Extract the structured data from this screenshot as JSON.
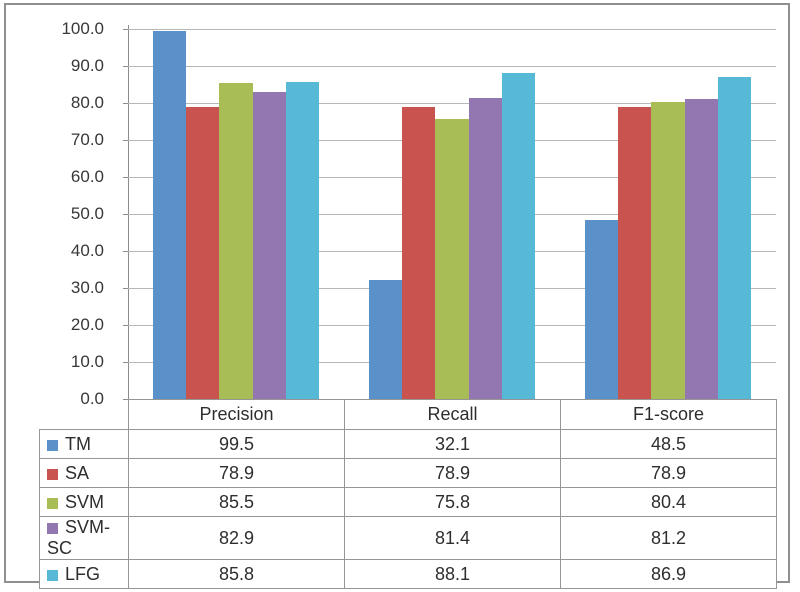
{
  "chart_data": {
    "type": "bar",
    "title": "",
    "categories": [
      "Precision",
      "Recall",
      "F1-score"
    ],
    "series": [
      {
        "name": "TM",
        "color": "#5b91c9",
        "values": [
          99.5,
          32.1,
          48.5
        ]
      },
      {
        "name": "SA",
        "color": "#c9534f",
        "values": [
          78.9,
          78.9,
          78.9
        ]
      },
      {
        "name": "SVM",
        "color": "#a9bd56",
        "values": [
          85.5,
          75.8,
          80.4
        ]
      },
      {
        "name": "SVM-SC",
        "color": "#9377b0",
        "values": [
          82.9,
          81.4,
          81.2
        ]
      },
      {
        "name": "LFG",
        "color": "#57b9d6",
        "values": [
          85.8,
          88.1,
          86.9
        ]
      }
    ],
    "ylim": [
      0,
      100
    ],
    "ytick_step": 10,
    "ytick_labels": [
      "100.0",
      "90.0",
      "80.0",
      "70.0",
      "60.0",
      "50.0",
      "40.0",
      "30.0",
      "20.0",
      "10.0",
      "0.0"
    ],
    "grid": "horizontal-major",
    "legend_position": "data-table-left-column",
    "value_decimals": 1
  },
  "frame": {
    "border_color": "#8f8f8f",
    "background": "#ffffff"
  }
}
